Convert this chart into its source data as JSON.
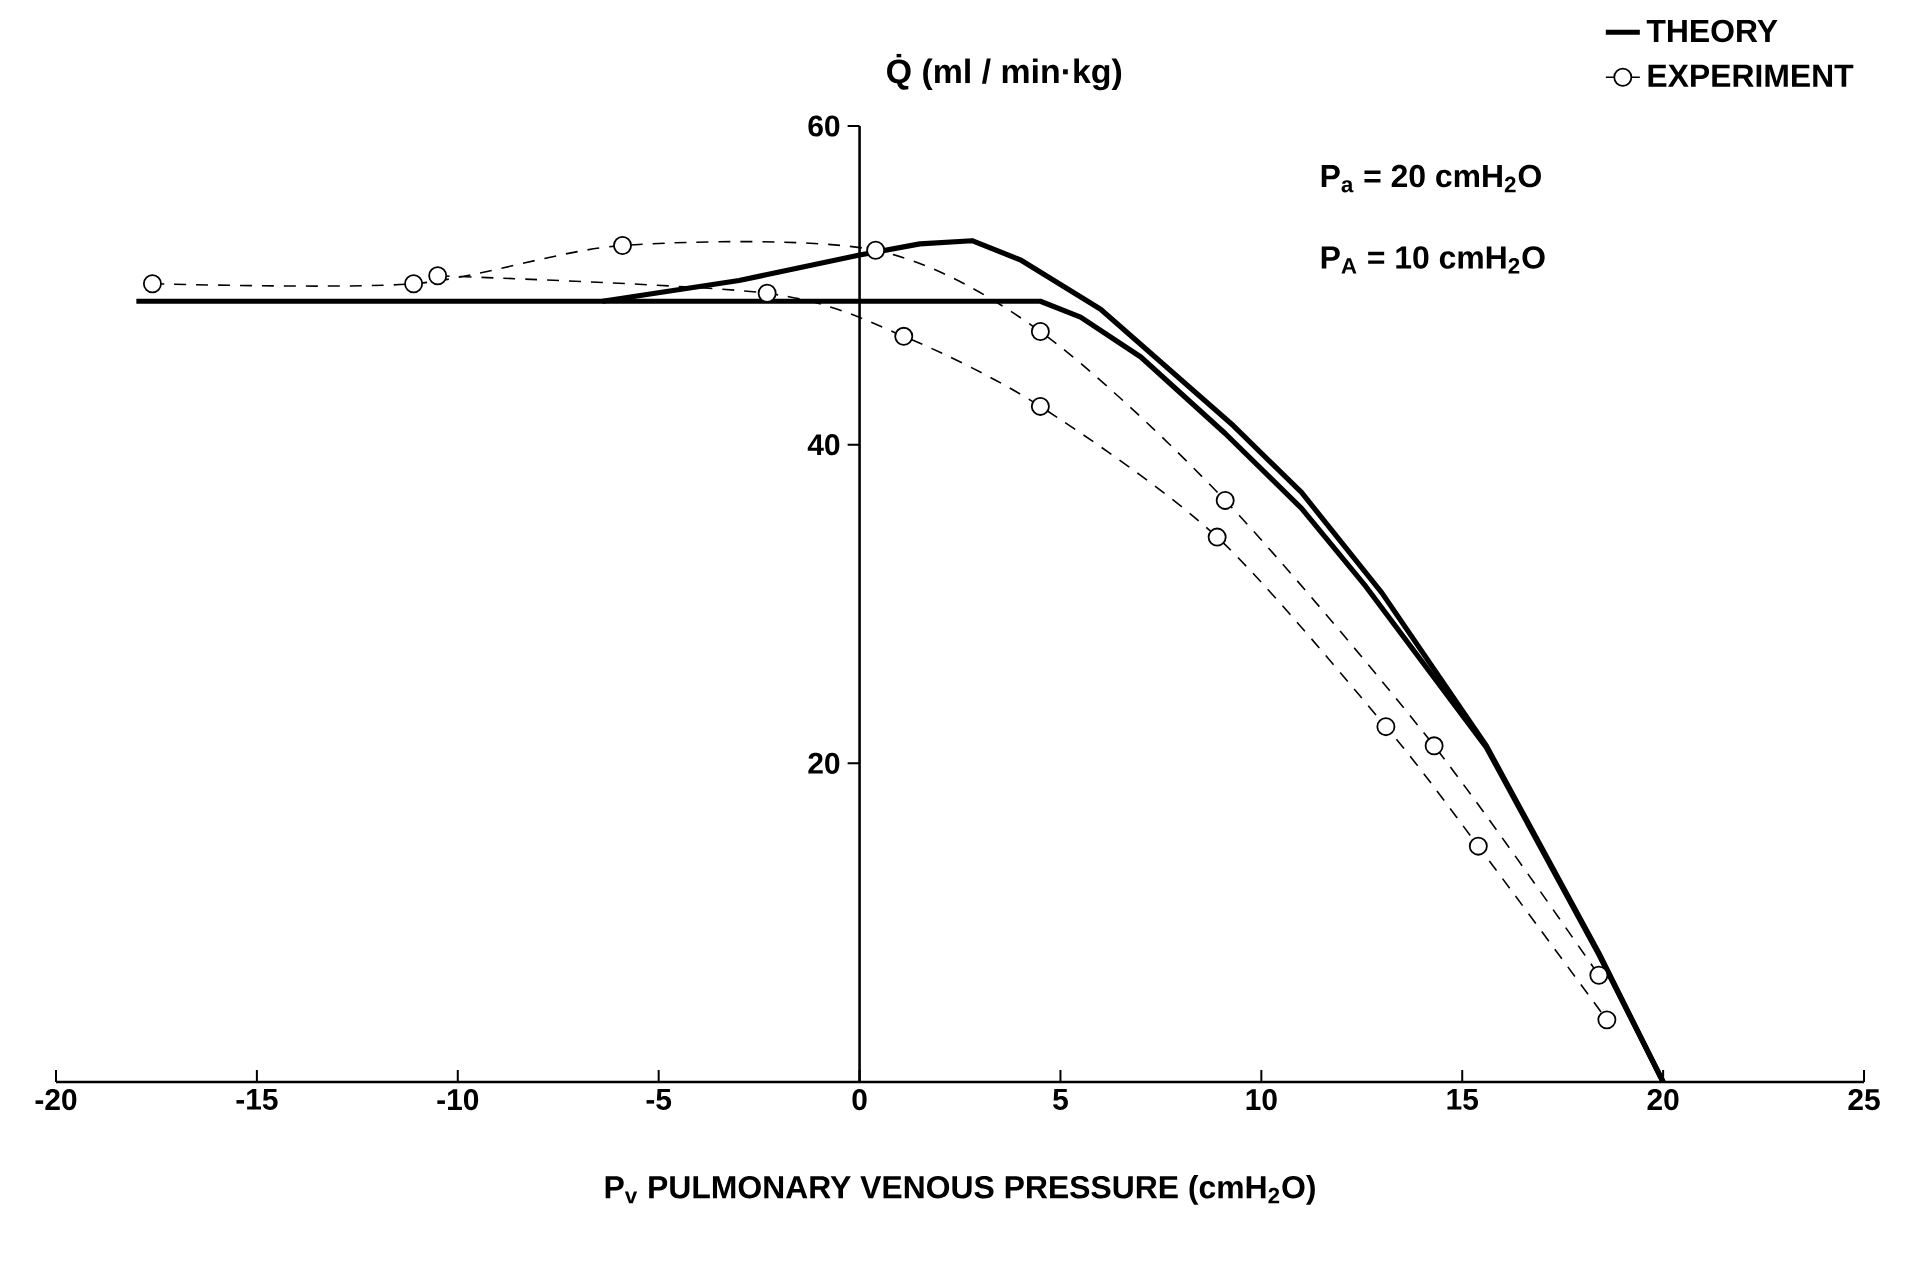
{
  "chart_data": {
    "type": "line",
    "xlabel": "P$_{v}$    PULMONARY  VENOUS  PRESSURE    (cmH$_{2}$O)",
    "ylabel": "Q̇  (ml / min·kg)",
    "xlim": [
      -20,
      25
    ],
    "ylim": [
      0,
      60
    ],
    "xticks": [
      -20,
      -15,
      -10,
      -5,
      0,
      5,
      10,
      15,
      20,
      25
    ],
    "yticks": [
      {
        "value": 0,
        "label": null
      },
      20,
      40,
      60
    ],
    "grid": false,
    "legend": "top right",
    "annotations": [
      "P$_{a}$ = 20  cmH$_{2}$O",
      "P$_{A}$ = 10  cmH$_{2}$O"
    ],
    "series": [
      {
        "name": "THEORY",
        "color": "#000000",
        "marker": "none",
        "line_style": "solid",
        "x": [
          -6.4,
          -3,
          0,
          1.5,
          2.8,
          4,
          6,
          9.3,
          11,
          13,
          15.6,
          18.4,
          20
        ],
        "values": [
          49,
          50.3,
          51.9,
          52.6,
          52.8,
          51.6,
          48.5,
          41.2,
          37,
          30.7,
          21.1,
          8.1,
          0
        ]
      },
      {
        "color": "#000000",
        "marker": "none",
        "line_style": "solid",
        "x": [
          -18,
          4.5,
          5.5,
          7,
          9.1,
          11,
          12.6,
          15.6,
          18.4,
          20
        ],
        "values": [
          49,
          49,
          48,
          45.5,
          40.7,
          36,
          31.1,
          21,
          8,
          0
        ]
      },
      {
        "name": "EXPERIMENT",
        "color": "#000000",
        "marker": "circle",
        "line_style": "dashed",
        "x": [
          -17.6,
          -11.1,
          -5.9,
          0.4,
          4.5,
          9.1,
          14.3,
          18.4
        ],
        "values": [
          50.1,
          50.1,
          52.5,
          52.2,
          47.1,
          36.5,
          21.1,
          6.7
        ]
      },
      {
        "color": "#000000",
        "marker": "circle",
        "line_style": "dashed",
        "x": [
          -10.5,
          -2.3,
          1.1,
          4.5,
          8.9,
          13.1,
          15.4,
          18.6
        ],
        "values": [
          50.6,
          49.5,
          46.8,
          42.4,
          34.2,
          22.3,
          14.8,
          3.9
        ]
      }
    ]
  }
}
